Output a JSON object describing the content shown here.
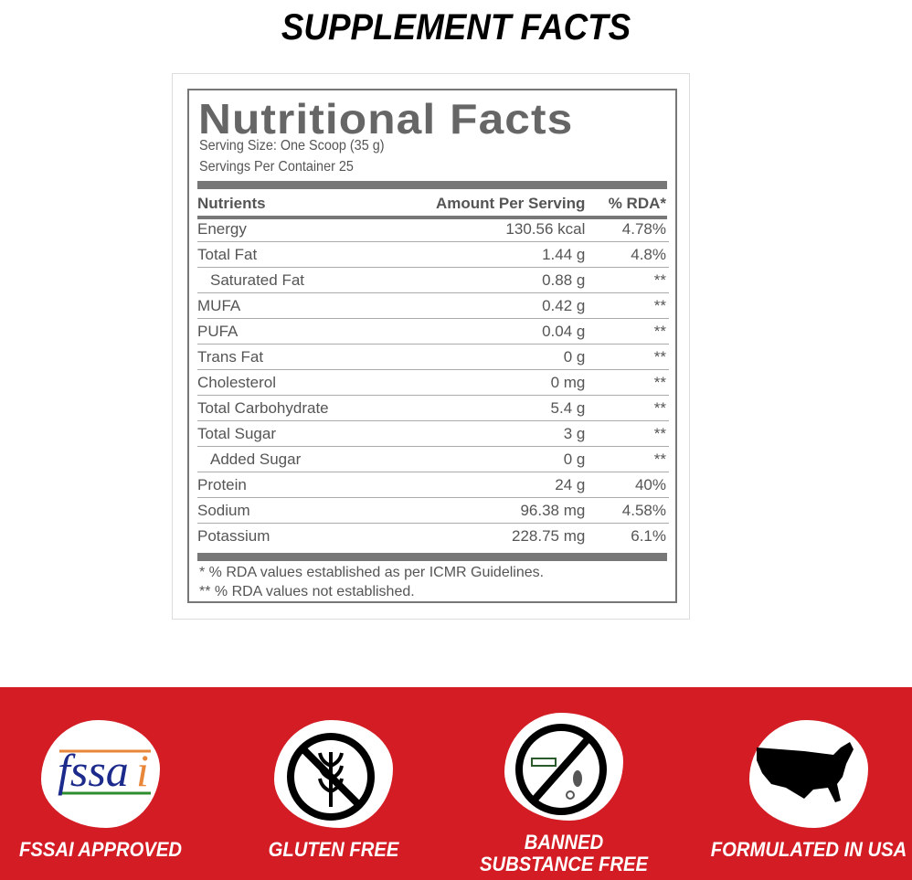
{
  "headline": "SUPPLEMENT FACTS",
  "label": {
    "title": "Nutritional Facts",
    "serving_size": "Serving Size: One Scoop (35 g)",
    "servings_per_container": "Servings Per Container  25",
    "headers": {
      "nutrient": "Nutrients",
      "amount": "Amount Per Serving",
      "rda": "% RDA*"
    },
    "rows": [
      {
        "nutrient": "Energy",
        "amount": "130.56 kcal",
        "rda": "4.78%"
      },
      {
        "nutrient": "Total Fat",
        "amount": "1.44 g",
        "rda": "4.8%"
      },
      {
        "nutrient": "Saturated Fat",
        "amount": "0.88 g",
        "rda": "**"
      },
      {
        "nutrient": "MUFA",
        "amount": "0.42 g",
        "rda": "**"
      },
      {
        "nutrient": "PUFA",
        "amount": "0.04 g",
        "rda": "**"
      },
      {
        "nutrient": "Trans Fat",
        "amount": "0 g",
        "rda": "**"
      },
      {
        "nutrient": "Cholesterol",
        "amount": "0 mg",
        "rda": "**"
      },
      {
        "nutrient": "Total Carbohydrate",
        "amount": "5.4 g",
        "rda": "**"
      },
      {
        "nutrient": "Total Sugar",
        "amount": "3 g",
        "rda": "**"
      },
      {
        "nutrient": "Added Sugar",
        "amount": "0 g",
        "rda": "**"
      },
      {
        "nutrient": "Protein",
        "amount": "24 g",
        "rda": "40%"
      },
      {
        "nutrient": "Sodium",
        "amount": "96.38 mg",
        "rda": "4.58%"
      },
      {
        "nutrient": "Potassium",
        "amount": "228.75 mg",
        "rda": "6.1%"
      }
    ],
    "footnotes": [
      "* % RDA values established as per ICMR Guidelines.",
      "** % RDA values not established."
    ]
  },
  "badges": [
    {
      "label": "FSSAI APPROVED",
      "icon": "fssai-logo",
      "logo_text": "fssai"
    },
    {
      "label": "GLUTEN FREE",
      "icon": "no-wheat-icon"
    },
    {
      "label_lines": [
        "BANNED",
        "SUBSTANCE FREE"
      ],
      "icon": "no-drugs-icon"
    },
    {
      "label": "FORMULATED IN USA",
      "icon": "usa-map-icon"
    }
  ],
  "colors": {
    "band": "#d31c24",
    "label_text": "#666666"
  }
}
